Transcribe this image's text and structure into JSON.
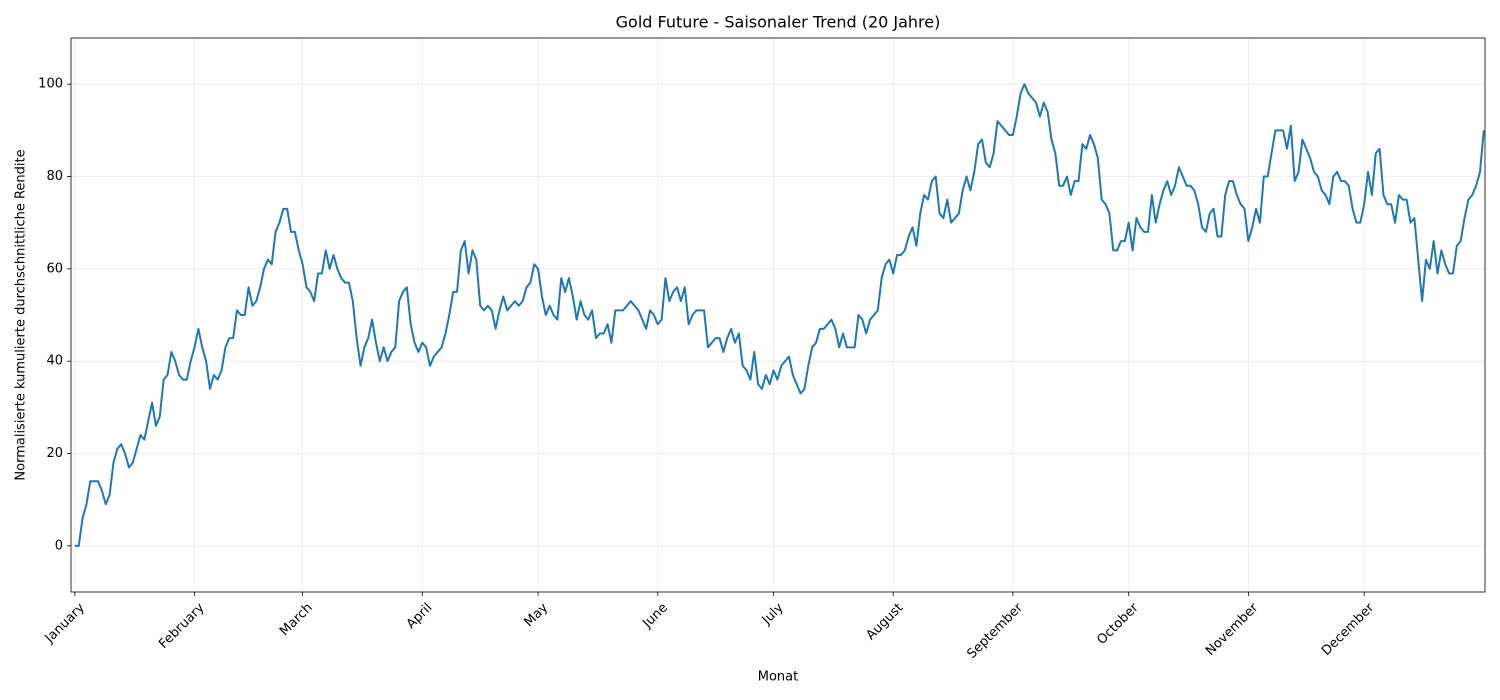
{
  "chart_data": {
    "type": "line",
    "title": "Gold Future - Saisonaler Trend (20 Jahre)",
    "xlabel": "Monat",
    "ylabel": "Normalisierte kumulierte durchschnittliche Rendite",
    "xlim": [
      -1,
      365.3
    ],
    "ylim": [
      -10,
      110
    ],
    "yticks": [
      0,
      20,
      40,
      60,
      80,
      100
    ],
    "xticks": [
      {
        "value": 0,
        "label": "January"
      },
      {
        "value": 31,
        "label": "February"
      },
      {
        "value": 59,
        "label": "March"
      },
      {
        "value": 90,
        "label": "April"
      },
      {
        "value": 120,
        "label": "May"
      },
      {
        "value": 151,
        "label": "June"
      },
      {
        "value": 181,
        "label": "July"
      },
      {
        "value": 212,
        "label": "August"
      },
      {
        "value": 243,
        "label": "September"
      },
      {
        "value": 273,
        "label": "October"
      },
      {
        "value": 304,
        "label": "November"
      },
      {
        "value": 334,
        "label": "December"
      }
    ],
    "grid": true,
    "series": [
      {
        "color": "#1f77b4",
        "x": [
          0,
          1,
          2,
          3,
          4,
          5,
          6,
          7,
          8,
          9,
          10,
          11,
          12,
          13,
          14,
          15,
          16,
          17,
          18,
          19,
          20,
          21,
          22,
          23,
          24,
          25,
          26,
          27,
          28,
          29,
          30,
          31,
          32,
          33,
          34,
          35,
          36,
          37,
          38,
          39,
          40,
          41,
          42,
          43,
          44,
          45,
          46,
          47,
          48,
          49,
          50,
          51,
          52,
          53,
          54,
          55,
          56,
          57,
          58,
          59,
          60,
          61,
          62,
          63,
          64,
          65,
          66,
          67,
          68,
          69,
          70,
          71,
          72,
          73,
          74,
          75,
          76,
          77,
          78,
          79,
          80,
          81,
          82,
          83,
          84,
          85,
          86,
          87,
          88,
          89,
          90,
          91,
          92,
          93,
          94,
          95,
          96,
          97,
          98,
          99,
          100,
          101,
          102,
          103,
          104,
          105,
          106,
          107,
          108,
          109,
          110,
          111,
          112,
          113,
          114,
          115,
          116,
          117,
          118,
          119,
          120,
          121,
          122,
          123,
          124,
          125,
          126,
          127,
          128,
          129,
          130,
          131,
          132,
          133,
          134,
          135,
          136,
          137,
          138,
          139,
          140,
          141,
          142,
          143,
          144,
          145,
          146,
          147,
          148,
          149,
          150,
          151,
          152,
          153,
          154,
          155,
          156,
          157,
          158,
          159,
          160,
          161,
          162,
          163,
          164,
          165,
          166,
          167,
          168,
          169,
          170,
          171,
          172,
          173,
          174,
          175,
          176,
          177,
          178,
          179,
          180,
          181,
          182,
          183,
          184,
          185,
          186,
          187,
          188,
          189,
          190,
          191,
          192,
          193,
          194,
          195,
          196,
          197,
          198,
          199,
          200,
          201,
          202,
          203,
          204,
          205,
          206,
          207,
          208,
          209,
          210,
          211,
          212,
          213,
          214,
          215,
          216,
          217,
          218,
          219,
          220,
          221,
          222,
          223,
          224,
          225,
          226,
          227,
          228,
          229,
          230,
          231,
          232,
          233,
          234,
          235,
          236,
          237,
          238,
          239,
          240,
          241,
          242,
          243,
          244,
          245,
          246,
          247,
          248,
          249,
          250,
          251,
          252,
          253,
          254,
          255,
          256,
          257,
          258,
          259,
          260,
          261,
          262,
          263,
          264,
          265,
          266,
          267,
          268,
          269,
          270,
          271,
          272,
          273,
          274,
          275,
          276,
          277,
          278,
          279,
          280,
          281,
          282,
          283,
          284,
          285,
          286,
          287,
          288,
          289,
          290,
          291,
          292,
          293,
          294,
          295,
          296,
          297,
          298,
          299,
          300,
          301,
          302,
          303,
          304,
          305,
          306,
          307,
          308,
          309,
          310,
          311,
          312,
          313,
          314,
          315,
          316,
          317,
          318,
          319,
          320,
          321,
          322,
          323,
          324,
          325,
          326,
          327,
          328,
          329,
          330,
          331,
          332,
          333,
          334,
          335,
          336,
          337,
          338,
          339,
          340,
          341,
          342,
          343,
          344,
          345,
          346,
          347,
          348,
          349,
          350,
          351,
          352,
          353,
          354,
          355,
          356,
          357,
          358,
          359,
          360,
          361,
          362,
          363,
          364,
          365
        ],
        "values": [
          0,
          0,
          6,
          9,
          14,
          14,
          14,
          12,
          9,
          11,
          18,
          21,
          22,
          20,
          17,
          18,
          21,
          24,
          23,
          27,
          31,
          26,
          28,
          36,
          37,
          42,
          40,
          37,
          36,
          36,
          40,
          43,
          47,
          43,
          40,
          34,
          37,
          36,
          38,
          43,
          45,
          45,
          51,
          50,
          50,
          56,
          52,
          53,
          56,
          60,
          62,
          61,
          68,
          70,
          73,
          73,
          68,
          68,
          64,
          61,
          56,
          55,
          53,
          59,
          59,
          64,
          60,
          63,
          60,
          58,
          57,
          57,
          53,
          45,
          39,
          43,
          45,
          49,
          44,
          40,
          43,
          40,
          42,
          43,
          53,
          55,
          56,
          48,
          44,
          42,
          44,
          43,
          39,
          41,
          42,
          43,
          46,
          50,
          55,
          55,
          64,
          66,
          59,
          64,
          62,
          52,
          51,
          52,
          51,
          47,
          51,
          54,
          51,
          52,
          53,
          52,
          53,
          56,
          57,
          61,
          60,
          54,
          50,
          52,
          50,
          49,
          58,
          55,
          58,
          54,
          49,
          53,
          50,
          49,
          51,
          45,
          46,
          46,
          48,
          44,
          51,
          51,
          51,
          52,
          53,
          52,
          51,
          49,
          47,
          51,
          50,
          48,
          49,
          58,
          53,
          55,
          56,
          53,
          56,
          48,
          50,
          51,
          51,
          51,
          43,
          44,
          45,
          45,
          42,
          45,
          47,
          44,
          46,
          39,
          38,
          36,
          42,
          35,
          34,
          37,
          35,
          38,
          36,
          39,
          40,
          41,
          37,
          35,
          33,
          34,
          39,
          43,
          44,
          47,
          47,
          48,
          49,
          47,
          43,
          46,
          43,
          43,
          43,
          50,
          49,
          46,
          49,
          50,
          51,
          58,
          61,
          62,
          59,
          63,
          63,
          64,
          67,
          69,
          65,
          72,
          76,
          75,
          79,
          80,
          72,
          71,
          75,
          70,
          71,
          72,
          77,
          80,
          77,
          81,
          87,
          88,
          83,
          82,
          85,
          92,
          91,
          90,
          89,
          89,
          93,
          98,
          100,
          98,
          97,
          96,
          93,
          96,
          94,
          88,
          85,
          78,
          78,
          80,
          76,
          79,
          79,
          87,
          86,
          89,
          87,
          84,
          75,
          74,
          72,
          64,
          64,
          66,
          66,
          70,
          64,
          71,
          69,
          68,
          68,
          76,
          70,
          74,
          77,
          79,
          76,
          78,
          82,
          80,
          78,
          78,
          77,
          74,
          69,
          68,
          72,
          73,
          67,
          67,
          76,
          79,
          79,
          76,
          74,
          73,
          66,
          69,
          73,
          70,
          80,
          80,
          85,
          90,
          90,
          90,
          86,
          91,
          79,
          81,
          88,
          86,
          84,
          81,
          80,
          77,
          76,
          74,
          80,
          81,
          79,
          79,
          78,
          73,
          70,
          70,
          74,
          81,
          76,
          85,
          86,
          76,
          74,
          74,
          70,
          76,
          75,
          75,
          70,
          71,
          62,
          53,
          62,
          60,
          66,
          59,
          64,
          61,
          59,
          59,
          65,
          66,
          71,
          75,
          76,
          78,
          81,
          90
        ]
      }
    ]
  }
}
